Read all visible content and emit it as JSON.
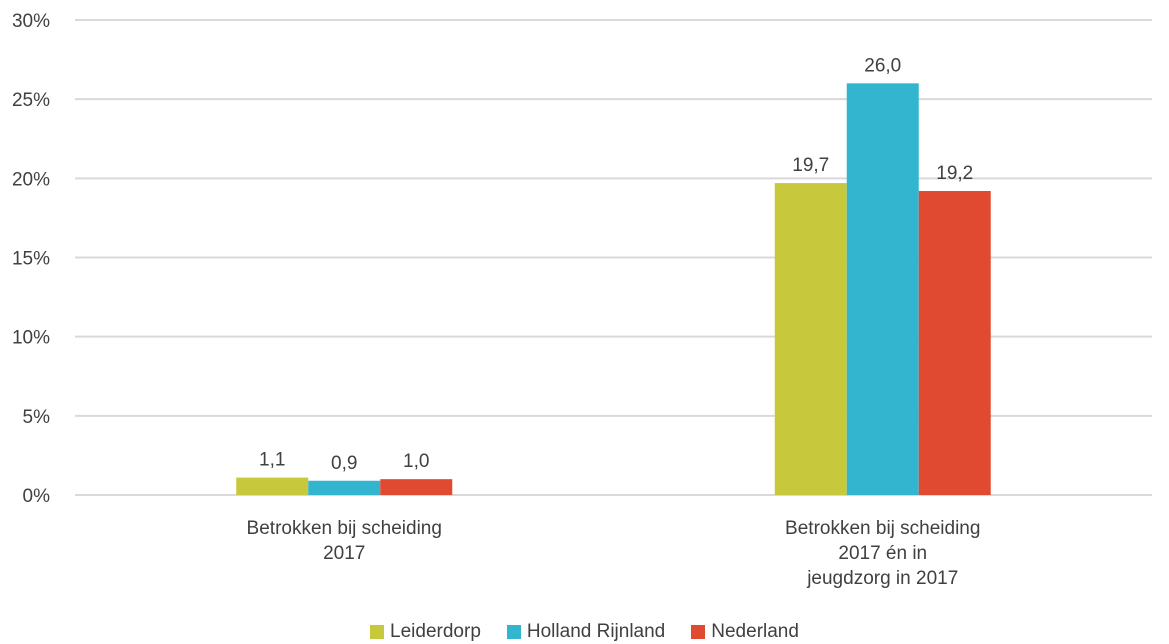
{
  "chart_data": {
    "type": "bar",
    "categories": [
      "Betrokken bij scheiding\n2017",
      "Betrokken bij scheiding\n2017 én in\njeugdzorg in 2017"
    ],
    "series": [
      {
        "name": "Leiderdorp",
        "values": [
          1.1,
          19.7
        ],
        "labels": [
          "1,1",
          "19,7"
        ],
        "color": "#c8c83c"
      },
      {
        "name": "Holland Rijnland",
        "values": [
          0.9,
          26.0
        ],
        "labels": [
          "0,9",
          "26,0"
        ],
        "color": "#33b5cf"
      },
      {
        "name": "Nederland",
        "values": [
          1.0,
          19.2
        ],
        "labels": [
          "1,0",
          "19,2"
        ],
        "color": "#e04a30"
      }
    ],
    "ylim": [
      0,
      30
    ],
    "yticks": [
      0,
      5,
      10,
      15,
      20,
      25,
      30
    ],
    "ytick_labels": [
      "0%",
      "5%",
      "10%",
      "15%",
      "20%",
      "25%",
      "30%"
    ],
    "grid": true,
    "legend_position": "bottom-center"
  }
}
